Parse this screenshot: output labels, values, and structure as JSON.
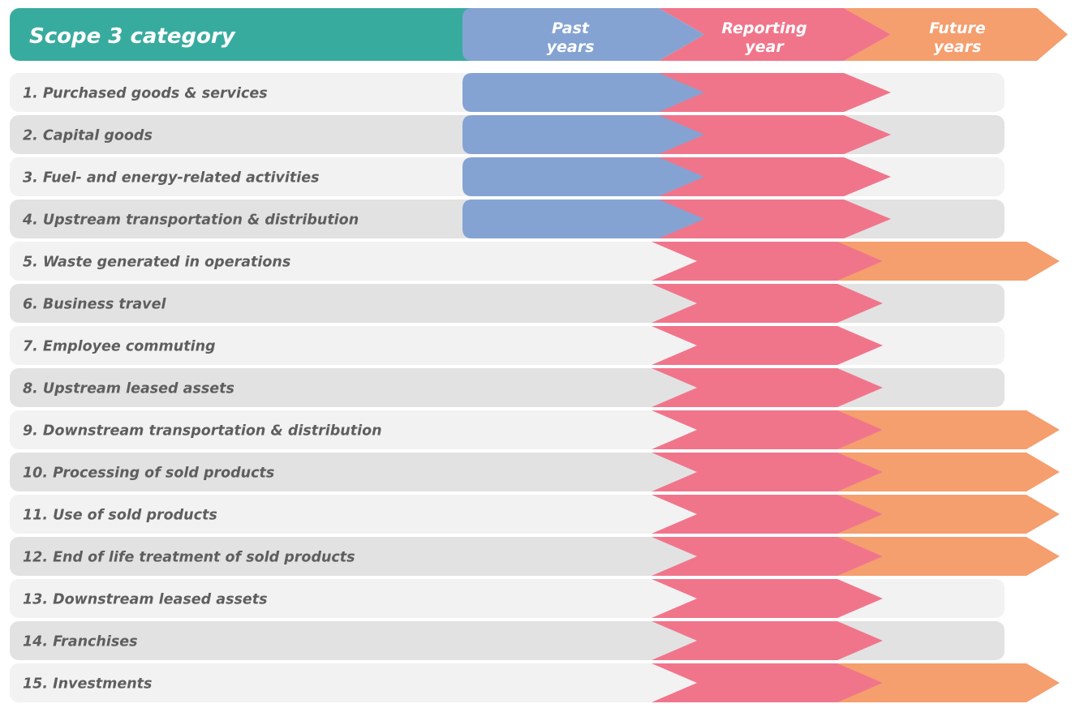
{
  "header": {
    "title": "Scope 3 category",
    "past_line1": "Past",
    "past_line2": "years",
    "reporting_line1": "Reporting",
    "reporting_line2": "year",
    "future_line1": "Future",
    "future_line2": "years"
  },
  "colors": {
    "header_teal": "#38ab9f",
    "past_blue": "#84a3d3",
    "reporting_pink": "#f0758b",
    "future_orange": "#f59e6e",
    "row_light": "#f2f2f2",
    "row_dark": "#e2e2e3",
    "label_text": "#5e5e5e"
  },
  "categories": [
    {
      "label": "1. Purchased goods & services",
      "past": true,
      "future": false
    },
    {
      "label": "2. Capital goods",
      "past": true,
      "future": false
    },
    {
      "label": "3. Fuel- and energy-related activities",
      "past": true,
      "future": false
    },
    {
      "label": "4. Upstream transportation & distribution",
      "past": true,
      "future": false
    },
    {
      "label": "5. Waste generated in operations",
      "past": false,
      "future": true
    },
    {
      "label": "6. Business travel",
      "past": false,
      "future": false
    },
    {
      "label": "7. Employee commuting",
      "past": false,
      "future": false
    },
    {
      "label": "8. Upstream leased assets",
      "past": false,
      "future": false
    },
    {
      "label": "9. Downstream transportation & distribution",
      "past": false,
      "future": true
    },
    {
      "label": "10. Processing of  sold products",
      "past": false,
      "future": true
    },
    {
      "label": "11. Use of sold products",
      "past": false,
      "future": true
    },
    {
      "label": "12. End of life treatment of sold products",
      "past": false,
      "future": true
    },
    {
      "label": "13. Downstream leased assets",
      "past": false,
      "future": false
    },
    {
      "label": "14. Franchises",
      "past": false,
      "future": false
    },
    {
      "label": "15. Investments",
      "past": false,
      "future": true
    }
  ]
}
